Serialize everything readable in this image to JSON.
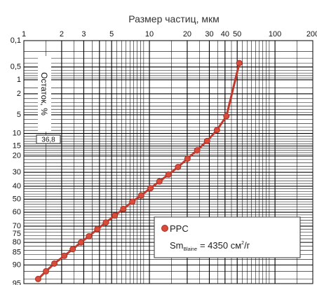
{
  "chart_data": {
    "type": "line",
    "title": "Размер частиц, мкм",
    "ylabel": "Остаток, %",
    "x_scale": "log",
    "y_scale": "probability",
    "xlim": [
      1,
      200
    ],
    "ylim": [
      0.1,
      95
    ],
    "x_ticks": [
      "1",
      "2",
      "3",
      "5",
      "10",
      "20",
      "30",
      "40",
      "50",
      "100",
      "200"
    ],
    "y_ticks": [
      "0,1",
      "0,5",
      "1",
      "2",
      "5",
      "10",
      "15",
      "20",
      "30",
      "40",
      "50",
      "60",
      "70",
      "75",
      "80",
      "85",
      "90",
      "95"
    ],
    "marker_label": "36,8",
    "grid": true,
    "legend_position": "bottom-right",
    "legend": {
      "name": "PPC",
      "sm_prefix": "Sm",
      "sm_subscript": "Blaine",
      "sm_value": "= 4350 см",
      "sm_sup": "2",
      "sm_unit": "/г"
    },
    "series": [
      {
        "name": "PPC",
        "color": "#c0392b",
        "marker_color": "#d94b3b",
        "x": [
          1.3,
          1.5,
          1.75,
          2.1,
          2.45,
          2.85,
          3.3,
          3.85,
          4.5,
          5.3,
          6.2,
          7.3,
          8.6,
          10.2,
          12.0,
          14.2,
          16.9,
          20.1,
          24.0,
          28.8,
          34.5,
          41.0,
          52.0
        ],
        "y": [
          94,
          92,
          89.5,
          86.5,
          83.5,
          80,
          76.5,
          72,
          67.5,
          62.5,
          57.5,
          52,
          47,
          41.5,
          36.5,
          31.5,
          26.5,
          21.5,
          17,
          12.8,
          8.9,
          5.3,
          0.4
        ]
      }
    ]
  }
}
